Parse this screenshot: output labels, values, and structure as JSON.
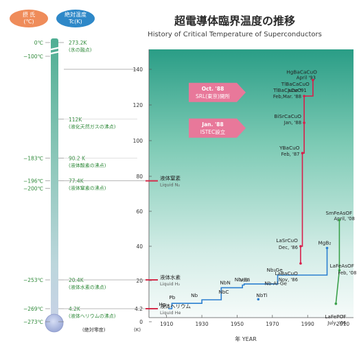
{
  "header": {
    "title_jp": "超電導体臨界温度の推移",
    "title_en": "History of Critical Temperature of Superconductors",
    "celsius_badge": [
      "摂 氏",
      "(℃)"
    ],
    "kelvin_badge": [
      "絶対温度",
      "Tc(K)"
    ]
  },
  "colors": {
    "celsius_badge": "#ef8c5a",
    "kelvin_badge": "#2e88c8",
    "title": "#2b2b2b",
    "green_text": "#2f8a3a",
    "red_marker": "#d42d4b",
    "blue_line": "#2b7fd0",
    "red_line": "#d81e4a",
    "green_line": "#3aa04a",
    "callout": "#e8789a"
  },
  "thermometer": {
    "celsius_labels": [
      {
        "text": "0℃",
        "k": 273.2
      },
      {
        "text": "−100℃",
        "k": 173.2
      },
      {
        "text": "−183℃",
        "k": 90.2
      },
      {
        "text": "−196℃",
        "k": 77.4
      },
      {
        "text": "−200℃",
        "k": 73.2
      },
      {
        "text": "−253℃",
        "k": 20.4
      },
      {
        "text": "−269℃",
        "k": 4.2
      },
      {
        "text": "−273℃",
        "k": 0
      }
    ],
    "kelvin_labels": [
      {
        "value": "273.2K",
        "note": "(氷の融点)",
        "k": 273.2
      },
      {
        "value": "112K",
        "note": "(液化天然ガスの沸点)",
        "k": 112
      },
      {
        "value": "90.2 K",
        "note": "(液体酸素の沸点)",
        "k": 90.2
      },
      {
        "value": "77.4K",
        "note": "(液体窒素の沸点)",
        "k": 77.4
      },
      {
        "value": "20.4K",
        "note": "(液体水素の沸点)",
        "k": 20.4
      },
      {
        "value": "4.2K",
        "note": "(液体ヘリウムの沸点)",
        "k": 4.2
      }
    ],
    "absolute_zero_label": "(絶対零度)",
    "kelvin_unit": "(K)"
  },
  "coolants": [
    {
      "jp": "液体窒素",
      "en": "Liquid N₂",
      "k": 77.4
    },
    {
      "jp": "液体水素",
      "en": "Liquid H₂",
      "k": 20.4
    },
    {
      "jp": "液体ヘリウム",
      "en": "Liquid He",
      "k": 4.2
    }
  ],
  "callouts": [
    {
      "line1": "Oct. '88",
      "line2": "SRL(東京)開所",
      "k": 127
    },
    {
      "line1": "Jan. '88",
      "line2": "ISTEC設立",
      "k": 107
    }
  ],
  "chart_data": {
    "type": "line",
    "title": "History of Critical Temperature of Superconductors",
    "xlabel": "年 YEAR",
    "ylabel": "",
    "xlim": [
      1900,
      2016
    ],
    "ylim": [
      0,
      150
    ],
    "x_ticks": [
      1910,
      1930,
      1950,
      1970,
      1990,
      2010
    ],
    "y_ticks": [
      0,
      4.2,
      20,
      40,
      60,
      80,
      100,
      120,
      140
    ],
    "y_tick_labels": [
      "0",
      "4.2",
      "20",
      "40",
      "60",
      "80",
      "100",
      "120",
      "140"
    ],
    "grid": false,
    "series": [
      {
        "color": "#2b7fd0",
        "x": [
          1911,
          1913,
          1913,
          1930,
          1930,
          1941,
          1941,
          1953,
          1953,
          1954,
          1954,
          1973,
          1973,
          2001,
          2001
        ],
        "y": [
          4.2,
          4.2,
          7.2,
          7.2,
          9.2,
          9.2,
          16,
          16,
          17.5,
          17.5,
          18.1,
          18.1,
          23.2,
          23.2,
          39
        ]
      },
      {
        "color": "#d81e4a",
        "x": [
          1986,
          1986,
          1987,
          1987,
          1988,
          1988,
          1993,
          1993
        ],
        "y": [
          30,
          40,
          40,
          93,
          93,
          125,
          125,
          134
        ]
      },
      {
        "color": "#3aa04a",
        "x": [
          2006,
          2008,
          2008
        ],
        "y": [
          7,
          26,
          55
        ]
      }
    ],
    "annotations": [
      {
        "text": "Hg",
        "x": 1911,
        "y": 4.2
      },
      {
        "text": "Pb",
        "x": 1913,
        "y": 7.2
      },
      {
        "text": "Nb",
        "x": 1930,
        "y": 9.2
      },
      {
        "text": "NbC",
        "x": 1941,
        "y": 11.1
      },
      {
        "text": "NbN",
        "x": 1941,
        "y": 16
      },
      {
        "text": "Nb₃Sn",
        "x": 1954,
        "y": 18.1
      },
      {
        "text": "NbTi",
        "x": 1962,
        "y": 9.5
      },
      {
        "text": "V₃Si",
        "x": 1953,
        "y": 17.5
      },
      {
        "text": "Nb₃Ge",
        "x": 1973,
        "y": 23.2
      },
      {
        "text": "Nb-Al-Ge",
        "x": 1971,
        "y": 20.7
      },
      {
        "text": "LaBaCuO",
        "x": 1986,
        "y": 30
      },
      {
        "text": "Nov, '86",
        "x": 1986,
        "y": 30
      },
      {
        "text": "LaSrCuO",
        "x": 1986,
        "y": 40
      },
      {
        "text": "Dec, '86",
        "x": 1986,
        "y": 40
      },
      {
        "text": "YBaCuO",
        "x": 1987,
        "y": 93
      },
      {
        "text": "Feb, '87",
        "x": 1987,
        "y": 93
      },
      {
        "text": "BiSrCaCuO",
        "x": 1988,
        "y": 110
      },
      {
        "text": "Jan, '88",
        "x": 1988,
        "y": 110
      },
      {
        "text": "TlBaCaCuO",
        "x": 1988,
        "y": 125
      },
      {
        "text": "Feb,Mar. '88",
        "x": 1988,
        "y": 125
      },
      {
        "text": "TlBaCaCuO",
        "x": 1991,
        "y": 127
      },
      {
        "text": "June '91",
        "x": 1991,
        "y": 127
      },
      {
        "text": "HgBaCaCuO",
        "x": 1993,
        "y": 134
      },
      {
        "text": "April '93",
        "x": 1993,
        "y": 134
      },
      {
        "text": "MgB₂",
        "x": 2001,
        "y": 39
      },
      {
        "text": "SmFeAsOF",
        "x": 2008,
        "y": 55
      },
      {
        "text": "April, '08",
        "x": 2008,
        "y": 55
      },
      {
        "text": "LaFeAsOF",
        "x": 2008,
        "y": 26
      },
      {
        "text": "Feb, '08",
        "x": 2008,
        "y": 26
      },
      {
        "text": "LaFePOF",
        "x": 2006,
        "y": 4
      },
      {
        "text": "July, '06",
        "x": 2006,
        "y": 4
      }
    ]
  }
}
